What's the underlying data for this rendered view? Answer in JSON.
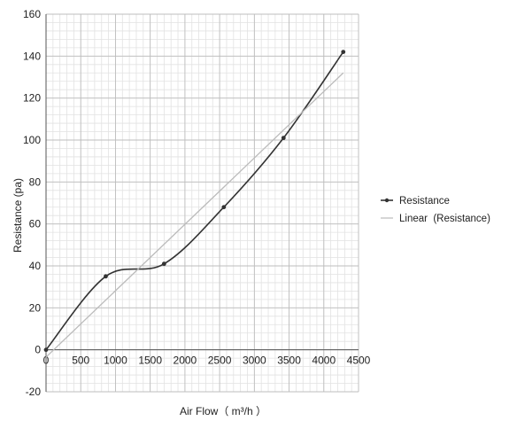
{
  "chart_data": {
    "type": "line",
    "xlabel": "Air Flow（ m³/h ）",
    "ylabel": "Resistance (pa)",
    "xlim": [
      0,
      4500
    ],
    "ylim": [
      -20,
      160
    ],
    "x_ticks": [
      0,
      500,
      1000,
      1500,
      2000,
      2500,
      3000,
      3500,
      4000,
      4500
    ],
    "y_ticks": [
      -20,
      0,
      20,
      40,
      60,
      80,
      100,
      120,
      140,
      160
    ],
    "grid": true,
    "legend_position": "right",
    "series": [
      {
        "name": "Resistance",
        "kind": "smoothed-line-with-markers",
        "color": "#333333",
        "x": [
          0,
          860,
          1700,
          2560,
          3420,
          4280
        ],
        "y": [
          0,
          35,
          41,
          68,
          101,
          142
        ]
      },
      {
        "name": "Linear  (Resistance)",
        "kind": "trendline",
        "color": "#bbbbbb",
        "x": [
          0,
          4280
        ],
        "y": [
          -3.5,
          132
        ]
      }
    ]
  }
}
